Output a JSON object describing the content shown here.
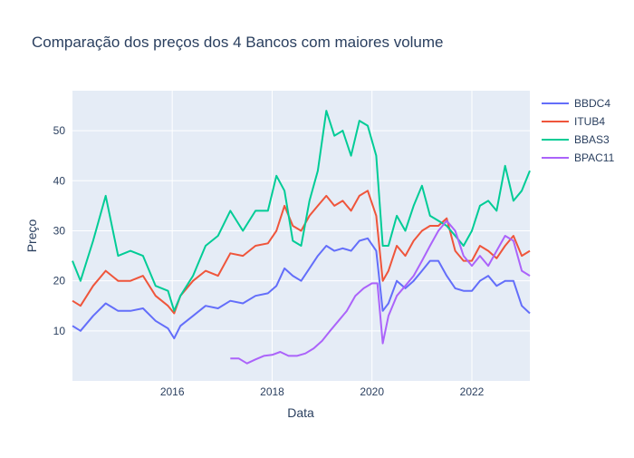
{
  "chart_data": {
    "type": "line",
    "title": "Comparação dos preços dos 4 Bancos com maiores volume",
    "xlabel": "Data",
    "ylabel": "Preço",
    "xlim": [
      "2014-01-01",
      "2023-03-01"
    ],
    "ylim": [
      0,
      58
    ],
    "x_ticks": [
      "2016",
      "2018",
      "2020",
      "2022"
    ],
    "y_ticks": [
      10,
      20,
      30,
      40,
      50
    ],
    "grid": true,
    "legend_position": "top-right",
    "colors": {
      "BBDC4": "#636efa",
      "ITUB4": "#ef553b",
      "BBAS3": "#00cc96",
      "BPAC11": "#ab63fa",
      "plot_bg": "#e5ecf6",
      "grid": "#ffffff",
      "text": "#2a3f5f"
    },
    "series": [
      {
        "name": "BBDC4",
        "x": [
          "2014-01-01",
          "2014-03-01",
          "2014-06-01",
          "2014-09-01",
          "2014-12-01",
          "2015-03-01",
          "2015-06-01",
          "2015-09-01",
          "2015-12-01",
          "2016-01-15",
          "2016-03-01",
          "2016-06-01",
          "2016-09-01",
          "2016-12-01",
          "2017-03-01",
          "2017-06-01",
          "2017-09-01",
          "2017-12-01",
          "2018-02-01",
          "2018-04-01",
          "2018-06-01",
          "2018-08-01",
          "2018-10-01",
          "2018-12-01",
          "2019-02-01",
          "2019-04-01",
          "2019-06-01",
          "2019-08-01",
          "2019-10-01",
          "2019-12-01",
          "2020-02-01",
          "2020-03-20",
          "2020-05-01",
          "2020-07-01",
          "2020-09-01",
          "2020-11-01",
          "2021-01-01",
          "2021-03-01",
          "2021-05-01",
          "2021-07-01",
          "2021-09-01",
          "2021-11-01",
          "2022-01-01",
          "2022-03-01",
          "2022-05-01",
          "2022-07-01",
          "2022-09-01",
          "2022-11-01",
          "2023-01-01",
          "2023-03-01"
        ],
        "values": [
          11,
          10,
          13,
          15.5,
          14,
          14,
          14.5,
          12,
          10.5,
          8.5,
          11,
          13,
          15,
          14.5,
          16,
          15.5,
          17,
          17.5,
          19,
          22.5,
          21,
          20,
          22.5,
          25,
          27,
          26,
          26.5,
          26,
          28,
          28.5,
          26,
          14,
          15.5,
          20,
          18.5,
          20,
          22,
          24,
          24,
          21,
          18.5,
          18,
          18,
          20,
          21,
          19,
          20,
          20,
          15,
          13.5
        ]
      },
      {
        "name": "ITUB4",
        "x": [
          "2014-01-01",
          "2014-03-01",
          "2014-06-01",
          "2014-09-01",
          "2014-12-01",
          "2015-03-01",
          "2015-06-01",
          "2015-09-01",
          "2015-12-01",
          "2016-01-15",
          "2016-03-01",
          "2016-06-01",
          "2016-09-01",
          "2016-12-01",
          "2017-03-01",
          "2017-06-01",
          "2017-09-01",
          "2017-12-01",
          "2018-02-01",
          "2018-04-01",
          "2018-06-01",
          "2018-08-01",
          "2018-10-01",
          "2018-12-01",
          "2019-02-01",
          "2019-04-01",
          "2019-06-01",
          "2019-08-01",
          "2019-10-01",
          "2019-12-01",
          "2020-02-01",
          "2020-03-20",
          "2020-05-01",
          "2020-07-01",
          "2020-09-01",
          "2020-11-01",
          "2021-01-01",
          "2021-03-01",
          "2021-05-01",
          "2021-07-01",
          "2021-09-01",
          "2021-11-01",
          "2022-01-01",
          "2022-03-01",
          "2022-05-01",
          "2022-07-01",
          "2022-09-01",
          "2022-11-01",
          "2023-01-01",
          "2023-03-01"
        ],
        "values": [
          16,
          15,
          19,
          22,
          20,
          20,
          21,
          17,
          15,
          13.5,
          17,
          20,
          22,
          21,
          25.5,
          25,
          27,
          27.5,
          30,
          35,
          31,
          30,
          33,
          35,
          37,
          35,
          36,
          34,
          37,
          38,
          33,
          20,
          22,
          27,
          25,
          28,
          30,
          31,
          31,
          32.5,
          26,
          24,
          24,
          27,
          26,
          24.5,
          27,
          29,
          25,
          26
        ]
      },
      {
        "name": "BBAS3",
        "x": [
          "2014-01-01",
          "2014-03-01",
          "2014-06-01",
          "2014-09-01",
          "2014-12-01",
          "2015-03-01",
          "2015-06-01",
          "2015-09-01",
          "2015-12-01",
          "2016-01-15",
          "2016-03-01",
          "2016-06-01",
          "2016-09-01",
          "2016-12-01",
          "2017-03-01",
          "2017-06-01",
          "2017-09-01",
          "2017-12-01",
          "2018-02-01",
          "2018-04-01",
          "2018-06-01",
          "2018-08-01",
          "2018-10-01",
          "2018-12-01",
          "2019-02-01",
          "2019-04-01",
          "2019-06-01",
          "2019-08-01",
          "2019-10-01",
          "2019-12-01",
          "2020-02-01",
          "2020-03-20",
          "2020-05-01",
          "2020-07-01",
          "2020-09-01",
          "2020-11-01",
          "2021-01-01",
          "2021-03-01",
          "2021-05-01",
          "2021-07-01",
          "2021-09-01",
          "2021-11-01",
          "2022-01-01",
          "2022-03-01",
          "2022-05-01",
          "2022-07-01",
          "2022-09-01",
          "2022-11-01",
          "2023-01-01",
          "2023-03-01"
        ],
        "values": [
          24,
          20,
          28,
          37,
          25,
          26,
          25,
          19,
          18,
          14,
          17,
          21,
          27,
          29,
          34,
          30,
          34,
          34,
          41,
          38,
          28,
          27,
          36,
          42,
          54,
          49,
          50,
          45,
          52,
          51,
          45,
          27,
          27,
          33,
          30,
          35,
          39,
          33,
          32,
          31,
          29,
          27,
          30,
          35,
          36,
          34,
          43,
          36,
          38,
          42
        ]
      },
      {
        "name": "BPAC11",
        "x": [
          "2017-03-01",
          "2017-05-01",
          "2017-07-01",
          "2017-09-01",
          "2017-11-01",
          "2018-01-01",
          "2018-03-01",
          "2018-05-01",
          "2018-07-01",
          "2018-09-01",
          "2018-11-01",
          "2019-01-01",
          "2019-03-01",
          "2019-05-01",
          "2019-07-01",
          "2019-09-01",
          "2019-11-01",
          "2020-01-01",
          "2020-02-10",
          "2020-03-20",
          "2020-05-01",
          "2020-07-01",
          "2020-09-01",
          "2020-11-01",
          "2021-01-01",
          "2021-03-01",
          "2021-05-01",
          "2021-07-01",
          "2021-09-01",
          "2021-11-01",
          "2022-01-01",
          "2022-03-01",
          "2022-05-01",
          "2022-07-01",
          "2022-09-01",
          "2022-11-01",
          "2023-01-01",
          "2023-03-01"
        ],
        "values": [
          4.5,
          4.5,
          3.5,
          4.3,
          5,
          5.2,
          5.8,
          5,
          5,
          5.5,
          6.5,
          8,
          10,
          12,
          14,
          17,
          18.5,
          19.5,
          19.5,
          7.5,
          13,
          17,
          19,
          21,
          24,
          27,
          30,
          32,
          30,
          25,
          23,
          25,
          23,
          26,
          29,
          28,
          22,
          21
        ]
      }
    ]
  }
}
